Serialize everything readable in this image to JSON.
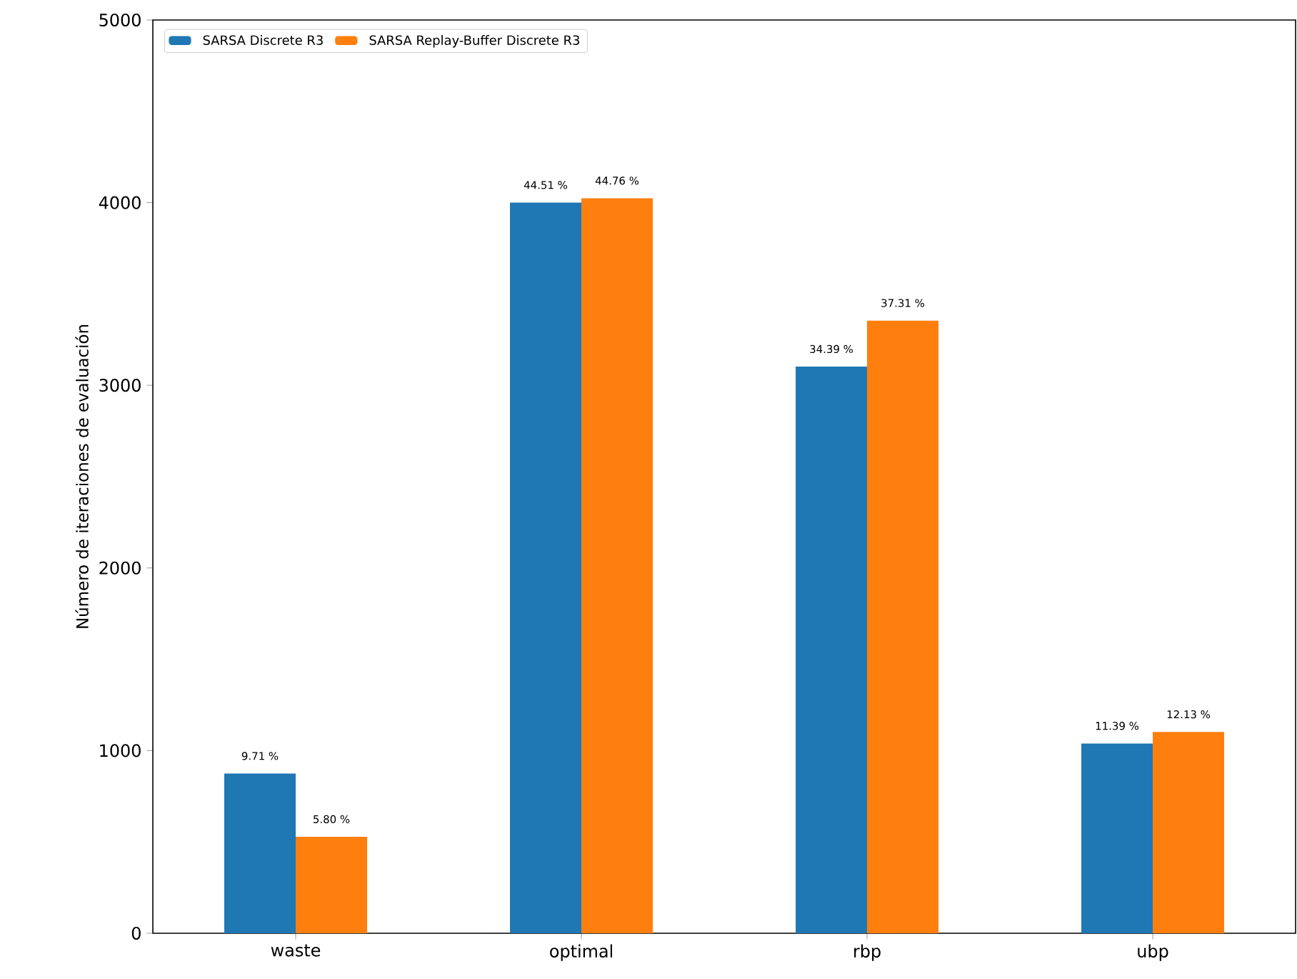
{
  "chart_data": {
    "type": "bar",
    "ylabel": "Número de iteraciones de evaluación",
    "categories": [
      "waste",
      "optimal",
      "rbp",
      "ubp"
    ],
    "ylim": [
      0,
      5000
    ],
    "yticks": [
      0,
      1000,
      2000,
      3000,
      4000,
      5000
    ],
    "legend": "top left",
    "series": [
      {
        "name": "SARSA Discrete R3",
        "color": "#1f77b4",
        "values": [
          874,
          4000,
          3102,
          1039
        ]
      },
      {
        "name": "SARSA Replay-Buffer Discrete R3",
        "color": "#ff7f0e",
        "values": [
          528,
          4024,
          3354,
          1102
        ]
      }
    ],
    "annotations": [
      {
        "text": "9.71 %",
        "x": "waste",
        "y": 874
      },
      {
        "text": "44.51 %",
        "x": "optimal",
        "y": 4000
      },
      {
        "text": "34.39 %",
        "x": "rbp",
        "y": 3102
      },
      {
        "text": "11.39 %",
        "x": "ubp",
        "y": 1039
      },
      {
        "text": "5.80 %",
        "x": "waste",
        "y": 528
      },
      {
        "text": "44.76 %",
        "x": "optimal",
        "y": 4024
      },
      {
        "text": "37.31 %",
        "x": "rbp",
        "y": 3354
      },
      {
        "text": "12.13 %",
        "x": "ubp",
        "y": 1102
      }
    ]
  }
}
